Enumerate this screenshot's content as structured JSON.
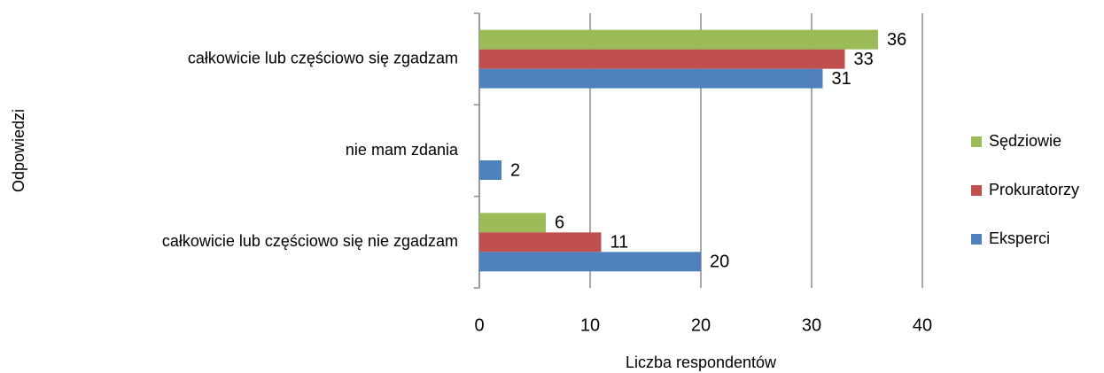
{
  "chart_data": {
    "type": "hbar",
    "x_label": "Liczba respondentów",
    "y_label": "Odpowiedzi",
    "categories": [
      "całkowicie lub częściowo się zgadzam",
      "nie mam zdania",
      "całkowicie lub częściowo się nie zgadzam"
    ],
    "series": [
      {
        "name": "Sędziowie",
        "color": "#9bbb59",
        "values": [
          36,
          null,
          6
        ]
      },
      {
        "name": "Prokuratorzy",
        "color": "#c0504d",
        "values": [
          33,
          null,
          11
        ]
      },
      {
        "name": "Eksperci",
        "color": "#4f81bd",
        "values": [
          31,
          2,
          20
        ]
      }
    ],
    "xlim": [
      0,
      40
    ],
    "xticks": [
      0,
      10,
      20,
      30,
      40
    ],
    "grid": true,
    "legend": "right"
  }
}
